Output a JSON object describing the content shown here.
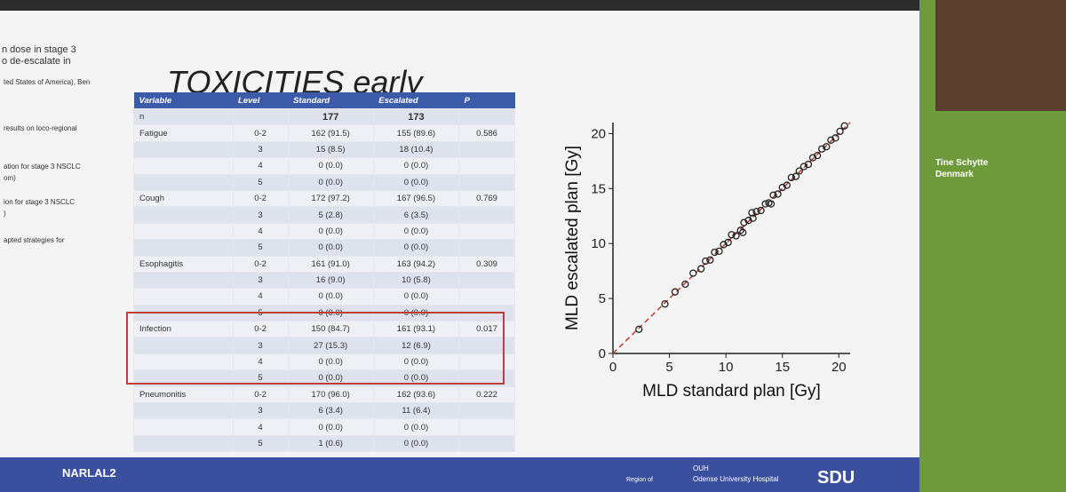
{
  "slide": {
    "title": "TOXICITIES early",
    "left_notes": [
      "n dose in stage 3",
      "o de-escalate in",
      "ted States of America), Ben",
      "results on loco-regional",
      "ation for stage 3 NSCLC",
      "om)",
      "ion for stage 3 NSCLC",
      ")",
      "apted strategies for"
    ],
    "footer": "NARLAL2",
    "logo_region": "Region of",
    "logo_ouh": "OUH",
    "logo_hospital": "Odense University Hospital",
    "logo_sdu": "SDU"
  },
  "speaker": {
    "name": "Tine Schytte",
    "country": "Denmark"
  },
  "table": {
    "header": [
      "Variable",
      "Level",
      "Standard",
      "Escalated",
      "P"
    ],
    "rows": [
      [
        "n",
        null,
        "177",
        "173",
        null
      ],
      [
        "Fatigue",
        "0-2",
        "162 (91.5)",
        "155 (89.6)",
        "0.586"
      ],
      [
        null,
        "3",
        "15 (8.5)",
        "18 (10.4)",
        null
      ],
      [
        null,
        "4",
        "0 (0.0)",
        "0 (0.0)",
        null
      ],
      [
        null,
        "5",
        "0 (0.0)",
        "0 (0.0)",
        null
      ],
      [
        "Cough",
        "0-2",
        "172 (97.2)",
        "167 (96.5)",
        "0.769"
      ],
      [
        null,
        "3",
        "5 (2.8)",
        "6 (3.5)",
        null
      ],
      [
        null,
        "4",
        "0 (0.0)",
        "0 (0.0)",
        null
      ],
      [
        null,
        "5",
        "0 (0.0)",
        "0 (0.0)",
        null
      ],
      [
        "Esophagitis",
        "0-2",
        "161 (91.0)",
        "163 (94.2)",
        "0.309"
      ],
      [
        null,
        "3",
        "16 (9.0)",
        "10 (5.8)",
        null
      ],
      [
        null,
        "4",
        "0 (0.0)",
        "0 (0.0)",
        null
      ],
      [
        null,
        "5",
        "0 (0.0)",
        "0 (0.0)",
        null
      ],
      [
        "Infection",
        "0-2",
        "150 (84.7)",
        "161 (93.1)",
        "0.017"
      ],
      [
        null,
        "3",
        "27 (15.3)",
        "12 (6.9)",
        null
      ],
      [
        null,
        "4",
        "0 (0.0)",
        "0 (0.0)",
        null
      ],
      [
        null,
        "5",
        "0 (0.0)",
        "0 (0.0)",
        null
      ],
      [
        "Pneumonitis",
        "0-2",
        "170 (96.0)",
        "162 (93.6)",
        "0.222"
      ],
      [
        null,
        "3",
        "6 (3.4)",
        "11 (6.4)",
        null
      ],
      [
        null,
        "4",
        "0 (0.0)",
        "0 (0.0)",
        null
      ],
      [
        null,
        "5",
        "1 (0.6)",
        "0 (0.0)",
        null
      ]
    ]
  },
  "chart_data": {
    "type": "scatter",
    "xlabel": "MLD standard plan [Gy]",
    "ylabel": "MLD escalated plan [Gy]",
    "xlim": [
      0,
      21
    ],
    "ylim": [
      0,
      21
    ],
    "xticks": [
      0,
      5,
      10,
      15,
      20
    ],
    "yticks": [
      0,
      5,
      10,
      15,
      20
    ],
    "color": "#222222",
    "line_color": "#c0392b",
    "x": [
      2.3,
      4.6,
      5.5,
      6.4,
      7.1,
      7.8,
      8.2,
      8.6,
      9.0,
      9.4,
      9.8,
      10.2,
      10.5,
      10.9,
      11.3,
      11.6,
      12.0,
      12.4,
      12.7,
      13.1,
      13.5,
      13.8,
      14.2,
      14.6,
      15.0,
      15.4,
      15.8,
      16.2,
      16.5,
      16.9,
      17.3,
      17.7,
      18.1,
      18.5,
      18.9,
      19.3,
      19.7,
      20.1,
      20.5,
      11.5,
      12.3,
      14.0
    ],
    "y": [
      2.2,
      4.5,
      5.6,
      6.3,
      7.3,
      7.7,
      8.4,
      8.5,
      9.2,
      9.3,
      9.9,
      10.1,
      10.8,
      10.7,
      11.2,
      11.9,
      12.1,
      12.3,
      12.9,
      13.0,
      13.6,
      13.7,
      14.4,
      14.5,
      15.1,
      15.3,
      16.0,
      16.1,
      16.6,
      17.0,
      17.2,
      17.8,
      18.0,
      18.6,
      18.8,
      19.4,
      19.6,
      20.2,
      20.7,
      11.0,
      12.8,
      13.6
    ]
  }
}
